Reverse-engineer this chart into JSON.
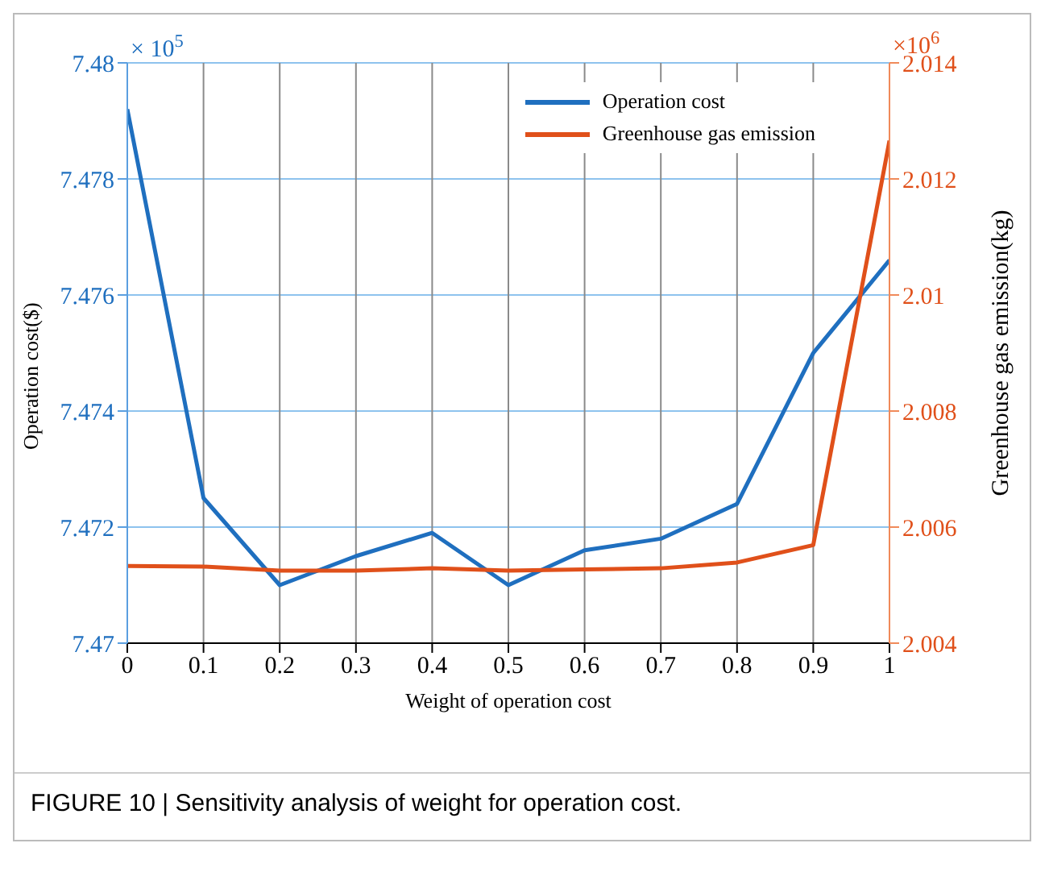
{
  "chart_data": {
    "type": "line",
    "xlabel": "Weight of operation cost",
    "ylabel": "Operation cost($)",
    "y2label": "Greenhouse gas emission(kg)",
    "x": [
      0,
      0.1,
      0.2,
      0.3,
      0.4,
      0.5,
      0.6,
      0.7,
      0.8,
      0.9,
      1
    ],
    "series": [
      {
        "name": "Operation cost",
        "color": "#1f6fbf",
        "values": [
          7.4792,
          7.4725,
          7.471,
          7.4715,
          7.4719,
          7.471,
          7.4716,
          7.4718,
          7.4724,
          7.475,
          7.4766
        ]
      },
      {
        "name": "Greenhouse gas emission",
        "color": "#e0501a",
        "axis": "y2",
        "values": [
          2.00533,
          2.00532,
          2.00525,
          2.00525,
          2.00529,
          2.00525,
          2.00527,
          2.00529,
          2.00539,
          2.00569,
          2.01266
        ]
      }
    ],
    "xlim": [
      0,
      1
    ],
    "xticks": [
      0,
      0.1,
      0.2,
      0.3,
      0.4,
      0.5,
      0.6,
      0.7,
      0.8,
      0.9,
      1
    ],
    "ylim": [
      7.47,
      7.48
    ],
    "yticks": [
      7.47,
      7.472,
      7.474,
      7.476,
      7.478,
      7.48
    ],
    "y2lim": [
      2.004,
      2.014
    ],
    "y2ticks": [
      2.004,
      2.006,
      2.008,
      2.01,
      2.012,
      2.014
    ],
    "grid": true,
    "legend": "top right",
    "marker": "none",
    "line_style": "solid",
    "annotations": [
      "× 10$^{5}$",
      "×10$^{6}$",
      "FIGURE 10 | Sensitivity analysis of weight for operation cost."
    ]
  }
}
